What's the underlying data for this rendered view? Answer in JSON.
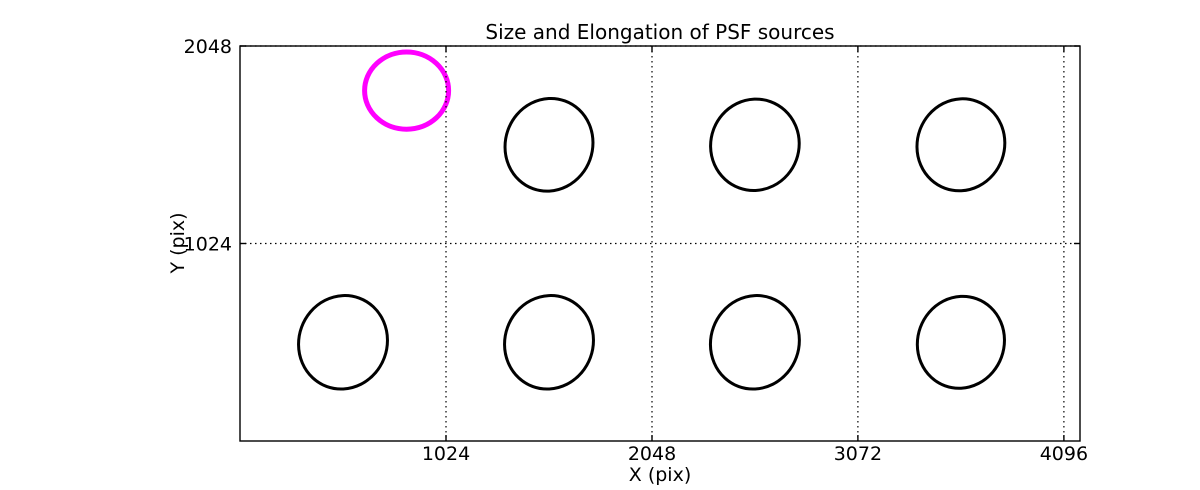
{
  "figure": {
    "title": "Size and Elongation of PSF sources"
  },
  "chart_data": {
    "type": "scatter",
    "marker": "ellipse",
    "title": "Size and Elongation of PSF sources",
    "xlabel": "X (pix)",
    "ylabel": "Y (pix)",
    "xlim": [
      0,
      4176
    ],
    "ylim": [
      0,
      2048
    ],
    "x_ticks": [
      1024,
      2048,
      3072,
      4096
    ],
    "y_ticks": [
      1024,
      2048
    ],
    "grid": {
      "visible": true,
      "style": "dotted",
      "color": "#000000"
    },
    "colors": {
      "normal_source": "#000000",
      "highlighted_source": "#FF00FF"
    },
    "ellipses": [
      {
        "x": 512,
        "y": 512,
        "semi_x": 219,
        "semi_y": 244,
        "angle_deg": 20,
        "color": "#000000",
        "line_width": 3,
        "highlighted": false
      },
      {
        "x": 1536,
        "y": 512,
        "semi_x": 219,
        "semi_y": 244,
        "angle_deg": 20,
        "color": "#000000",
        "line_width": 3,
        "highlighted": false
      },
      {
        "x": 2560,
        "y": 512,
        "semi_x": 219,
        "semi_y": 244,
        "angle_deg": 20,
        "color": "#000000",
        "line_width": 3,
        "highlighted": false
      },
      {
        "x": 3584,
        "y": 512,
        "semi_x": 215,
        "semi_y": 240,
        "angle_deg": 20,
        "color": "#000000",
        "line_width": 3,
        "highlighted": false
      },
      {
        "x": 1536,
        "y": 1536,
        "semi_x": 217,
        "semi_y": 242,
        "angle_deg": 20,
        "color": "#000000",
        "line_width": 3,
        "highlighted": false
      },
      {
        "x": 2560,
        "y": 1536,
        "semi_x": 219,
        "semi_y": 238,
        "angle_deg": 20,
        "color": "#000000",
        "line_width": 3,
        "highlighted": false
      },
      {
        "x": 3584,
        "y": 1536,
        "semi_x": 217,
        "semi_y": 240,
        "angle_deg": 20,
        "color": "#000000",
        "line_width": 3,
        "highlighted": false
      },
      {
        "x": 828,
        "y": 1817,
        "semi_x": 209,
        "semi_y": 200,
        "angle_deg": 0,
        "color": "#FF00FF",
        "line_width": 5,
        "highlighted": true
      }
    ]
  }
}
